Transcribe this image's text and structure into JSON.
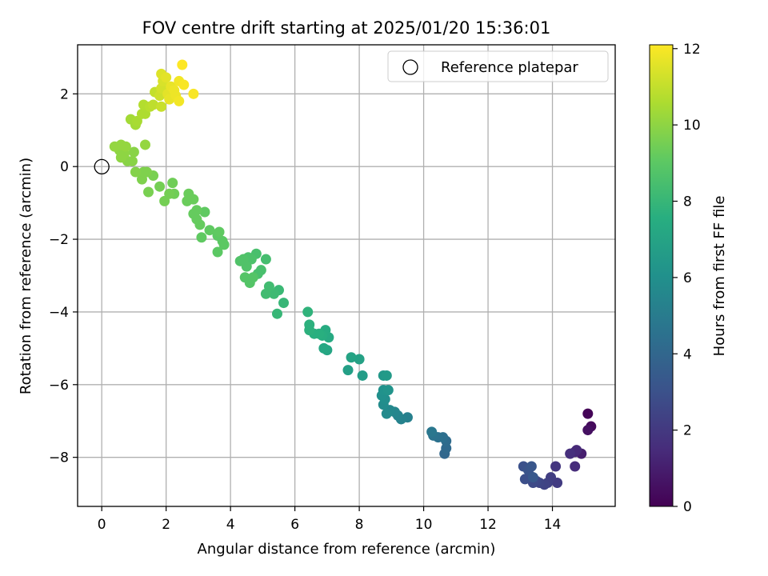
{
  "chart_data": {
    "type": "scatter",
    "title": "FOV centre drift starting at 2025/01/20 15:36:01",
    "xlabel": "Angular distance from reference (arcmin)",
    "ylabel": "Rotation from reference (arcmin)",
    "xlim": [
      -0.75,
      15.95
    ],
    "ylim": [
      -9.35,
      3.35
    ],
    "xticks": [
      0,
      2,
      4,
      6,
      8,
      10,
      12,
      14
    ],
    "yticks": [
      -8,
      -6,
      -4,
      -2,
      0,
      2
    ],
    "grid": true,
    "legend": {
      "placement": "top-right",
      "entries": [
        "Reference platepar"
      ]
    },
    "reference_point": {
      "x": 0,
      "y": 0
    },
    "colorbar": {
      "label": "Hours from first FF file",
      "range": [
        0,
        12.1
      ],
      "ticks": [
        0,
        2,
        4,
        6,
        8,
        10,
        12
      ],
      "colormap": "viridis"
    },
    "points": [
      {
        "x": 15.1,
        "y": -6.8,
        "h": 0.1
      },
      {
        "x": 15.2,
        "y": -7.15,
        "h": 0.3
      },
      {
        "x": 15.1,
        "y": -7.25,
        "h": 0.5
      },
      {
        "x": 14.9,
        "y": -7.9,
        "h": 1.0
      },
      {
        "x": 14.7,
        "y": -7.85,
        "h": 1.3
      },
      {
        "x": 14.75,
        "y": -7.8,
        "h": 1.4
      },
      {
        "x": 14.55,
        "y": -7.9,
        "h": 1.6
      },
      {
        "x": 14.7,
        "y": -8.25,
        "h": 1.5
      },
      {
        "x": 14.1,
        "y": -8.25,
        "h": 1.9
      },
      {
        "x": 14.15,
        "y": -8.7,
        "h": 2.1
      },
      {
        "x": 13.95,
        "y": -8.55,
        "h": 2.2
      },
      {
        "x": 13.85,
        "y": -8.7,
        "h": 2.3
      },
      {
        "x": 13.75,
        "y": -8.75,
        "h": 2.4
      },
      {
        "x": 13.6,
        "y": -8.7,
        "h": 2.5
      },
      {
        "x": 13.5,
        "y": -8.65,
        "h": 2.6
      },
      {
        "x": 13.4,
        "y": -8.7,
        "h": 2.7
      },
      {
        "x": 13.3,
        "y": -8.5,
        "h": 2.8
      },
      {
        "x": 13.15,
        "y": -8.6,
        "h": 2.9
      },
      {
        "x": 13.1,
        "y": -8.25,
        "h": 3.0
      },
      {
        "x": 13.25,
        "y": -8.35,
        "h": 3.1
      },
      {
        "x": 13.35,
        "y": -8.25,
        "h": 3.2
      },
      {
        "x": 13.4,
        "y": -8.55,
        "h": 3.3
      },
      {
        "x": 10.65,
        "y": -7.9,
        "h": 4.0
      },
      {
        "x": 10.7,
        "y": -7.75,
        "h": 4.1
      },
      {
        "x": 10.7,
        "y": -7.55,
        "h": 4.2
      },
      {
        "x": 10.6,
        "y": -7.45,
        "h": 4.4
      },
      {
        "x": 10.45,
        "y": -7.45,
        "h": 4.5
      },
      {
        "x": 10.3,
        "y": -7.4,
        "h": 4.6
      },
      {
        "x": 10.25,
        "y": -7.3,
        "h": 4.8
      },
      {
        "x": 9.5,
        "y": -6.9,
        "h": 5.2
      },
      {
        "x": 9.3,
        "y": -6.95,
        "h": 5.3
      },
      {
        "x": 9.2,
        "y": -6.85,
        "h": 5.4
      },
      {
        "x": 9.1,
        "y": -6.75,
        "h": 5.5
      },
      {
        "x": 8.95,
        "y": -6.7,
        "h": 5.6
      },
      {
        "x": 8.85,
        "y": -6.8,
        "h": 5.7
      },
      {
        "x": 8.75,
        "y": -6.55,
        "h": 5.8
      },
      {
        "x": 8.8,
        "y": -6.4,
        "h": 5.9
      },
      {
        "x": 8.7,
        "y": -6.3,
        "h": 6.0
      },
      {
        "x": 8.75,
        "y": -6.15,
        "h": 6.1
      },
      {
        "x": 8.9,
        "y": -6.15,
        "h": 6.2
      },
      {
        "x": 8.75,
        "y": -5.75,
        "h": 6.4
      },
      {
        "x": 8.85,
        "y": -5.75,
        "h": 6.5
      },
      {
        "x": 8.1,
        "y": -5.75,
        "h": 6.7
      },
      {
        "x": 7.65,
        "y": -5.6,
        "h": 6.8
      },
      {
        "x": 8.0,
        "y": -5.3,
        "h": 6.9
      },
      {
        "x": 7.75,
        "y": -5.25,
        "h": 7.0
      },
      {
        "x": 7.0,
        "y": -5.05,
        "h": 7.1
      },
      {
        "x": 6.9,
        "y": -5.0,
        "h": 7.2
      },
      {
        "x": 7.05,
        "y": -4.7,
        "h": 7.3
      },
      {
        "x": 6.95,
        "y": -4.5,
        "h": 7.4
      },
      {
        "x": 6.85,
        "y": -4.65,
        "h": 7.5
      },
      {
        "x": 6.75,
        "y": -4.6,
        "h": 7.6
      },
      {
        "x": 6.6,
        "y": -4.6,
        "h": 7.6
      },
      {
        "x": 6.45,
        "y": -4.5,
        "h": 7.7
      },
      {
        "x": 6.45,
        "y": -4.35,
        "h": 7.7
      },
      {
        "x": 6.4,
        "y": -4.0,
        "h": 7.8
      },
      {
        "x": 5.65,
        "y": -3.75,
        "h": 8.0
      },
      {
        "x": 5.45,
        "y": -4.05,
        "h": 8.0
      },
      {
        "x": 5.5,
        "y": -3.4,
        "h": 8.1
      },
      {
        "x": 5.35,
        "y": -3.5,
        "h": 8.2
      },
      {
        "x": 5.2,
        "y": -3.3,
        "h": 8.3
      },
      {
        "x": 5.1,
        "y": -3.5,
        "h": 8.3
      },
      {
        "x": 5.1,
        "y": -2.55,
        "h": 8.4
      },
      {
        "x": 4.95,
        "y": -2.85,
        "h": 8.5
      },
      {
        "x": 4.85,
        "y": -2.95,
        "h": 8.5
      },
      {
        "x": 4.8,
        "y": -2.4,
        "h": 8.5
      },
      {
        "x": 4.65,
        "y": -2.55,
        "h": 8.6
      },
      {
        "x": 4.55,
        "y": -2.5,
        "h": 8.6
      },
      {
        "x": 4.5,
        "y": -2.75,
        "h": 8.7
      },
      {
        "x": 4.4,
        "y": -2.55,
        "h": 8.7
      },
      {
        "x": 4.3,
        "y": -2.6,
        "h": 8.7
      },
      {
        "x": 4.45,
        "y": -3.05,
        "h": 8.8
      },
      {
        "x": 4.6,
        "y": -3.2,
        "h": 8.8
      },
      {
        "x": 4.7,
        "y": -3.05,
        "h": 8.8
      },
      {
        "x": 3.8,
        "y": -2.15,
        "h": 9.0
      },
      {
        "x": 3.75,
        "y": -2.05,
        "h": 9.0
      },
      {
        "x": 3.6,
        "y": -1.9,
        "h": 9.0
      },
      {
        "x": 3.6,
        "y": -2.35,
        "h": 9.0
      },
      {
        "x": 3.65,
        "y": -1.8,
        "h": 9.1
      },
      {
        "x": 3.35,
        "y": -1.75,
        "h": 9.1
      },
      {
        "x": 3.2,
        "y": -1.25,
        "h": 9.1
      },
      {
        "x": 3.1,
        "y": -1.95,
        "h": 9.1
      },
      {
        "x": 3.05,
        "y": -1.6,
        "h": 9.2
      },
      {
        "x": 2.95,
        "y": -1.45,
        "h": 9.2
      },
      {
        "x": 2.85,
        "y": -1.3,
        "h": 9.2
      },
      {
        "x": 2.95,
        "y": -1.2,
        "h": 9.2
      },
      {
        "x": 2.85,
        "y": -0.9,
        "h": 9.3
      },
      {
        "x": 2.7,
        "y": -0.75,
        "h": 9.3
      },
      {
        "x": 2.65,
        "y": -0.95,
        "h": 9.3
      },
      {
        "x": 2.25,
        "y": -0.75,
        "h": 9.4
      },
      {
        "x": 2.2,
        "y": -0.45,
        "h": 9.4
      },
      {
        "x": 2.1,
        "y": -0.75,
        "h": 9.5
      },
      {
        "x": 1.95,
        "y": -0.95,
        "h": 9.5
      },
      {
        "x": 1.8,
        "y": -0.55,
        "h": 9.5
      },
      {
        "x": 1.6,
        "y": -0.25,
        "h": 9.6
      },
      {
        "x": 1.45,
        "y": -0.7,
        "h": 9.6
      },
      {
        "x": 1.4,
        "y": -0.15,
        "h": 9.7
      },
      {
        "x": 1.25,
        "y": -0.35,
        "h": 9.7
      },
      {
        "x": 1.3,
        "y": -0.15,
        "h": 9.7
      },
      {
        "x": 1.05,
        "y": -0.15,
        "h": 9.8
      },
      {
        "x": 1.0,
        "y": 0.4,
        "h": 9.9
      },
      {
        "x": 0.95,
        "y": 0.15,
        "h": 9.9
      },
      {
        "x": 0.8,
        "y": 0.15,
        "h": 9.9
      },
      {
        "x": 0.7,
        "y": 0.35,
        "h": 10.0
      },
      {
        "x": 0.6,
        "y": 0.25,
        "h": 10.0
      },
      {
        "x": 0.55,
        "y": 0.45,
        "h": 10.0
      },
      {
        "x": 0.4,
        "y": 0.55,
        "h": 10.1
      },
      {
        "x": 0.6,
        "y": 0.6,
        "h": 10.1
      },
      {
        "x": 0.75,
        "y": 0.55,
        "h": 10.1
      },
      {
        "x": 1.35,
        "y": 0.6,
        "h": 10.1
      },
      {
        "x": 1.05,
        "y": 1.15,
        "h": 10.4
      },
      {
        "x": 0.9,
        "y": 1.3,
        "h": 10.4
      },
      {
        "x": 1.1,
        "y": 1.25,
        "h": 10.5
      },
      {
        "x": 1.25,
        "y": 1.45,
        "h": 10.6
      },
      {
        "x": 1.35,
        "y": 1.45,
        "h": 10.6
      },
      {
        "x": 1.3,
        "y": 1.7,
        "h": 10.7
      },
      {
        "x": 1.5,
        "y": 1.65,
        "h": 10.8
      },
      {
        "x": 1.6,
        "y": 1.7,
        "h": 10.9
      },
      {
        "x": 1.65,
        "y": 2.05,
        "h": 11.0
      },
      {
        "x": 1.85,
        "y": 1.65,
        "h": 11.1
      },
      {
        "x": 1.8,
        "y": 1.95,
        "h": 11.2
      },
      {
        "x": 1.85,
        "y": 2.15,
        "h": 11.3
      },
      {
        "x": 1.9,
        "y": 2.35,
        "h": 11.4
      },
      {
        "x": 1.85,
        "y": 2.55,
        "h": 11.5
      },
      {
        "x": 2.0,
        "y": 2.45,
        "h": 11.6
      },
      {
        "x": 2.05,
        "y": 2.0,
        "h": 11.6
      },
      {
        "x": 2.1,
        "y": 1.85,
        "h": 11.7
      },
      {
        "x": 2.15,
        "y": 2.2,
        "h": 11.7
      },
      {
        "x": 2.25,
        "y": 2.1,
        "h": 11.8
      },
      {
        "x": 2.3,
        "y": 1.95,
        "h": 11.8
      },
      {
        "x": 2.4,
        "y": 1.8,
        "h": 11.9
      },
      {
        "x": 2.4,
        "y": 2.35,
        "h": 11.9
      },
      {
        "x": 2.55,
        "y": 2.25,
        "h": 12.0
      },
      {
        "x": 2.85,
        "y": 2.0,
        "h": 12.0
      },
      {
        "x": 2.5,
        "y": 2.8,
        "h": 12.1
      }
    ]
  }
}
